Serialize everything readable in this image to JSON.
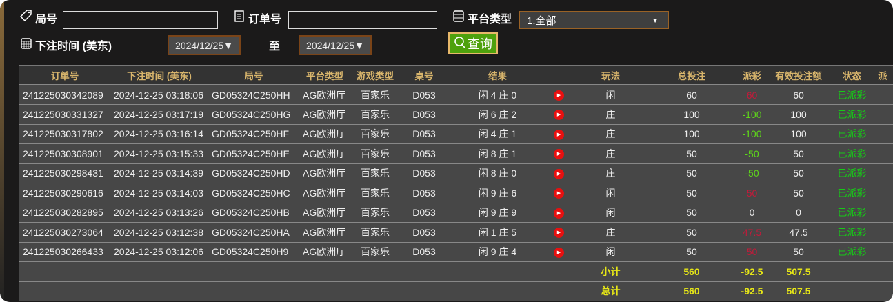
{
  "filters": {
    "round_label": "局号",
    "round_value": "",
    "order_label": "订单号",
    "order_value": "",
    "platform_label": "平台类型",
    "platform_value": "1.全部",
    "time_label": "下注时间 (美东)",
    "date_from": "2024/12/25▼",
    "to_label": "至",
    "date_to": "2024/12/25▼",
    "query_label": "查询"
  },
  "table": {
    "headers": [
      "订单号",
      "下注时间 (美东)",
      "局号",
      "平台类型",
      "游戏类型",
      "桌号",
      "结果",
      "",
      "玩法",
      "总投注",
      "派彩",
      "有效投注额",
      "状态",
      "派"
    ],
    "rows": [
      {
        "order": "241225030342089",
        "time": "2024-12-25 03:18:06",
        "round": "GD05324C250HH",
        "platform": "AG欧洲厅",
        "game": "百家乐",
        "table": "D053",
        "result": "闲 4 庄 0",
        "play": "闲",
        "bet": "60",
        "payout": "60",
        "payout_sign": "pos",
        "valid": "60",
        "status": "已派彩"
      },
      {
        "order": "241225030331327",
        "time": "2024-12-25 03:17:19",
        "round": "GD05324C250HG",
        "platform": "AG欧洲厅",
        "game": "百家乐",
        "table": "D053",
        "result": "闲 6 庄 2",
        "play": "庄",
        "bet": "100",
        "payout": "-100",
        "payout_sign": "neg",
        "valid": "100",
        "status": "已派彩"
      },
      {
        "order": "241225030317802",
        "time": "2024-12-25 03:16:14",
        "round": "GD05324C250HF",
        "platform": "AG欧洲厅",
        "game": "百家乐",
        "table": "D053",
        "result": "闲 4 庄 1",
        "play": "庄",
        "bet": "100",
        "payout": "-100",
        "payout_sign": "neg",
        "valid": "100",
        "status": "已派彩"
      },
      {
        "order": "241225030308901",
        "time": "2024-12-25 03:15:33",
        "round": "GD05324C250HE",
        "platform": "AG欧洲厅",
        "game": "百家乐",
        "table": "D053",
        "result": "闲 8 庄 1",
        "play": "庄",
        "bet": "50",
        "payout": "-50",
        "payout_sign": "neg",
        "valid": "50",
        "status": "已派彩"
      },
      {
        "order": "241225030298431",
        "time": "2024-12-25 03:14:39",
        "round": "GD05324C250HD",
        "platform": "AG欧洲厅",
        "game": "百家乐",
        "table": "D053",
        "result": "闲 8 庄 0",
        "play": "庄",
        "bet": "50",
        "payout": "-50",
        "payout_sign": "neg",
        "valid": "50",
        "status": "已派彩"
      },
      {
        "order": "241225030290616",
        "time": "2024-12-25 03:14:03",
        "round": "GD05324C250HC",
        "platform": "AG欧洲厅",
        "game": "百家乐",
        "table": "D053",
        "result": "闲 9 庄 6",
        "play": "闲",
        "bet": "50",
        "payout": "50",
        "payout_sign": "pos",
        "valid": "50",
        "status": "已派彩"
      },
      {
        "order": "241225030282895",
        "time": "2024-12-25 03:13:26",
        "round": "GD05324C250HB",
        "platform": "AG欧洲厅",
        "game": "百家乐",
        "table": "D053",
        "result": "闲 9 庄 9",
        "play": "闲",
        "bet": "50",
        "payout": "0",
        "payout_sign": "zero",
        "valid": "0",
        "status": "已派彩"
      },
      {
        "order": "241225030273064",
        "time": "2024-12-25 03:12:38",
        "round": "GD05324C250HA",
        "platform": "AG欧洲厅",
        "game": "百家乐",
        "table": "D053",
        "result": "闲 1 庄 5",
        "play": "庄",
        "bet": "50",
        "payout": "47.5",
        "payout_sign": "pos",
        "valid": "47.5",
        "status": "已派彩"
      },
      {
        "order": "241225030266433",
        "time": "2024-12-25 03:12:06",
        "round": "GD05324C250H9",
        "platform": "AG欧洲厅",
        "game": "百家乐",
        "table": "D053",
        "result": "闲 9 庄 4",
        "play": "闲",
        "bet": "50",
        "payout": "50",
        "payout_sign": "pos",
        "valid": "50",
        "status": "已派彩"
      }
    ],
    "subtotal": {
      "label": "小计",
      "bet": "560",
      "payout": "-92.5",
      "valid": "507.5"
    },
    "total": {
      "label": "总计",
      "bet": "560",
      "payout": "-92.5",
      "valid": "507.5"
    }
  },
  "colors": {
    "positive_payout": "#c41a3a",
    "negative_payout": "#5ed61a",
    "status": "#17c917",
    "header_text": "#d8b56c",
    "sum_text": "#e6e617",
    "query_button": "#4ea10d"
  }
}
